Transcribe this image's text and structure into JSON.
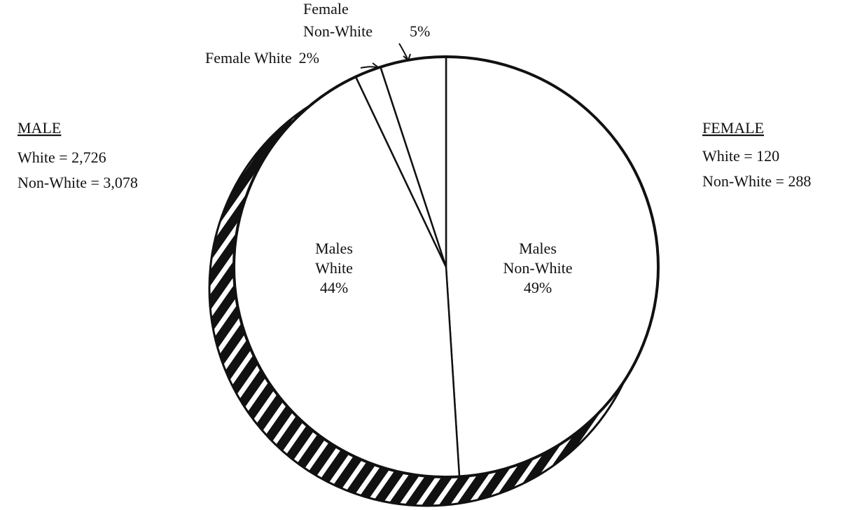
{
  "chart_data": {
    "type": "pie",
    "categories": [
      "Males Non-White",
      "Males White",
      "Female White",
      "Female Non-White"
    ],
    "values": [
      49,
      44,
      2,
      5
    ],
    "value_labels": [
      "49%",
      "44%",
      "2%",
      "5%"
    ],
    "color": "#ffffff",
    "annotations": {
      "male": {
        "title": "MALE",
        "lines": [
          "White = 2,726",
          "Non-White = 3,078"
        ]
      },
      "female": {
        "title": "FEMALE",
        "lines": [
          "White = 120",
          "Non-White = 288"
        ]
      }
    }
  }
}
